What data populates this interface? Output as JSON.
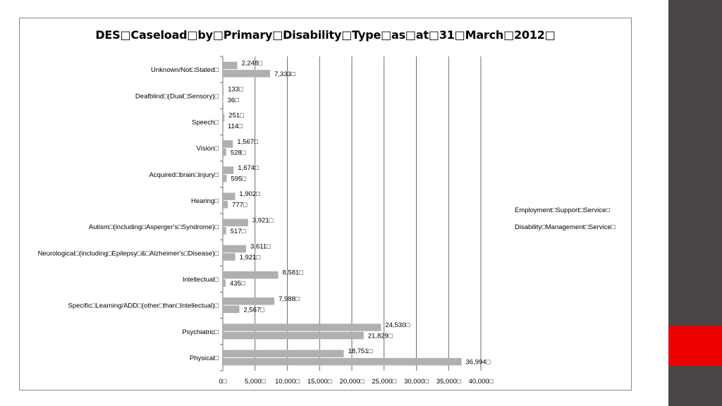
{
  "chart_data": {
    "type": "bar",
    "orientation": "horizontal",
    "title": "DES□Caseload□by□Primary□Disability□Type□as□at□31□March□2012□",
    "xlabel": "",
    "ylabel": "",
    "xlim": [
      0,
      40000
    ],
    "grid": true,
    "legend_position": "right",
    "categories": [
      "Unknown/Not□Stated□",
      "Deafblind□(Dual□Sensory)□",
      "Speech□",
      "Vision□",
      "Acquired□brain□injury□",
      "Hearing□",
      "Autism□(including□Asperger's□Syndrome)□",
      "Neurological□(including□Epilepsy□&□Alzheimer's□Disease)□",
      "Intellectual□",
      "Specific□Learning/ADD□(other□than□Intellectual)□",
      "Psychiatric□",
      "Physical□"
    ],
    "series": [
      {
        "name": "Employment□Support□Service□",
        "values": [
          2248,
          133,
          251,
          1567,
          1674,
          1902,
          3921,
          3611,
          8581,
          7988,
          24530,
          18751
        ],
        "labels": [
          "2,248□",
          "133□",
          "251□",
          "1,567□",
          "1,674□",
          "1,902□",
          "3,921□",
          "3,611□",
          "8,581□",
          "7,988□",
          "24,530□",
          "18,751□"
        ]
      },
      {
        "name": "Disability□Management□Service□",
        "values": [
          7333,
          36,
          114,
          528,
          595,
          777,
          517,
          1921,
          435,
          2567,
          21829,
          36994
        ],
        "labels": [
          "7,333□",
          "36□",
          "114□",
          "528□",
          "595□",
          "777□",
          "517□",
          "1,921□",
          "435□",
          "2,567□",
          "21,829□",
          "36,994□"
        ]
      }
    ],
    "x_ticks": [
      0,
      5000,
      10000,
      15000,
      20000,
      25000,
      30000,
      35000,
      40000
    ],
    "x_tick_labels": [
      "0□",
      "5,000□",
      "10,000□",
      "15,000□",
      "20,000□",
      "25,000□",
      "30,000□",
      "35,000□",
      "40,000□"
    ]
  },
  "colors": {
    "bar_fill": "#b0b0b0",
    "gridline": "#4a4a4a",
    "side_panel": "#4a4646",
    "accent": "#ee0000"
  }
}
